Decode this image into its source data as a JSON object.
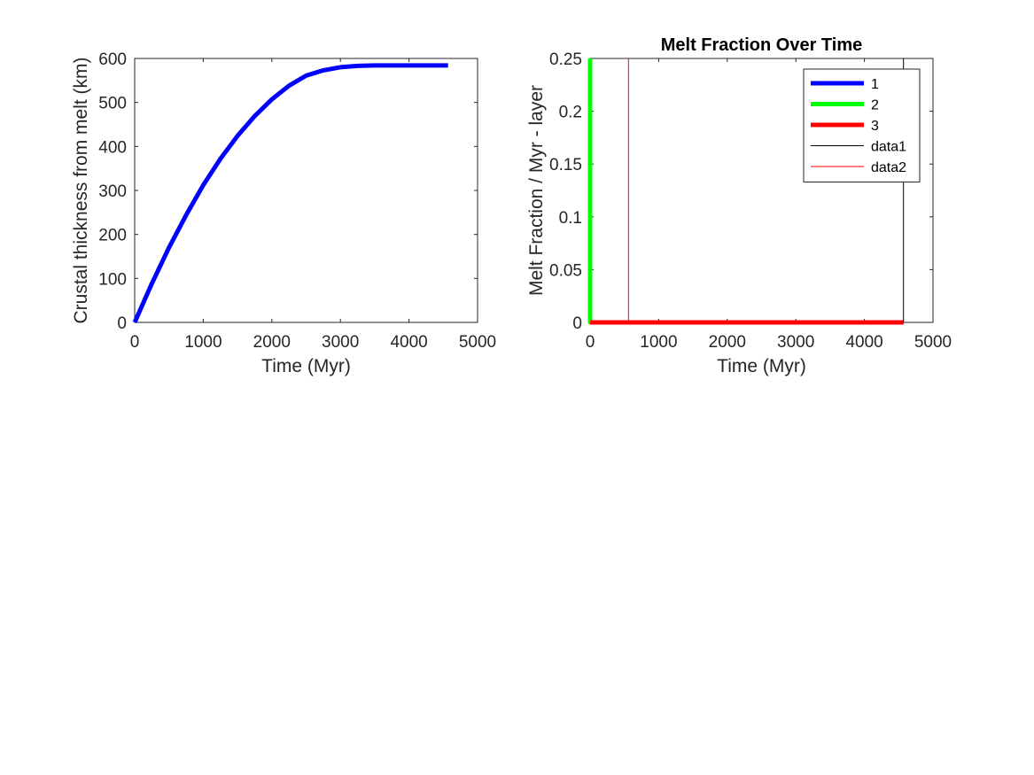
{
  "chart_data": [
    {
      "type": "line",
      "title": "",
      "xlabel": "Time (Myr)",
      "ylabel": "Crustal thickness from melt (km)",
      "xlim": [
        0,
        5000
      ],
      "ylim": [
        0,
        600
      ],
      "xticks": [
        "0",
        "1000",
        "2000",
        "3000",
        "4000",
        "5000"
      ],
      "yticks": [
        "0",
        "100",
        "200",
        "300",
        "400",
        "500",
        "600"
      ],
      "grid": false,
      "legend": null,
      "series": [
        {
          "color": "#0000ff",
          "x": [
            0,
            250,
            500,
            750,
            1000,
            1250,
            1500,
            1750,
            2000,
            2250,
            2500,
            2750,
            3000,
            3250,
            3500,
            3750,
            4000,
            4250,
            4500,
            4570
          ],
          "y": [
            0,
            88,
            170,
            244,
            312,
            372,
            424,
            469,
            507,
            538,
            561,
            573,
            580,
            583,
            584,
            584,
            584,
            584,
            584,
            584
          ]
        }
      ]
    },
    {
      "type": "line",
      "title": "Melt Fraction Over Time",
      "xlabel": "Time (Myr)",
      "ylabel": "Melt Fraction / Myr - layer",
      "xlim": [
        0,
        5000
      ],
      "ylim": [
        0,
        0.25
      ],
      "xticks": [
        "0",
        "1000",
        "2000",
        "3000",
        "4000",
        "5000"
      ],
      "yticks": [
        "0",
        "0.05",
        "0.1",
        "0.15",
        "0.2",
        "0.25"
      ],
      "grid": false,
      "legend_position": "top-right",
      "series": [
        {
          "name": "1",
          "color": "#0000ff",
          "x": [
            0,
            4570
          ],
          "y": [
            0,
            0
          ]
        },
        {
          "name": "2",
          "color": "#00ff00",
          "x": [
            0,
            0,
            0,
            4570
          ],
          "y": [
            0.25,
            0,
            0,
            0
          ]
        },
        {
          "name": "3",
          "color": "#ff0000",
          "x": [
            0,
            4570
          ],
          "y": [
            0,
            0
          ]
        },
        {
          "name": "data1",
          "color": "#000000",
          "x": [
            4570,
            4570
          ],
          "y": [
            0,
            0.25
          ]
        },
        {
          "name": "data2",
          "color": "#ff0000",
          "x": [
            560,
            560
          ],
          "y": [
            0,
            0.25
          ]
        }
      ]
    }
  ]
}
